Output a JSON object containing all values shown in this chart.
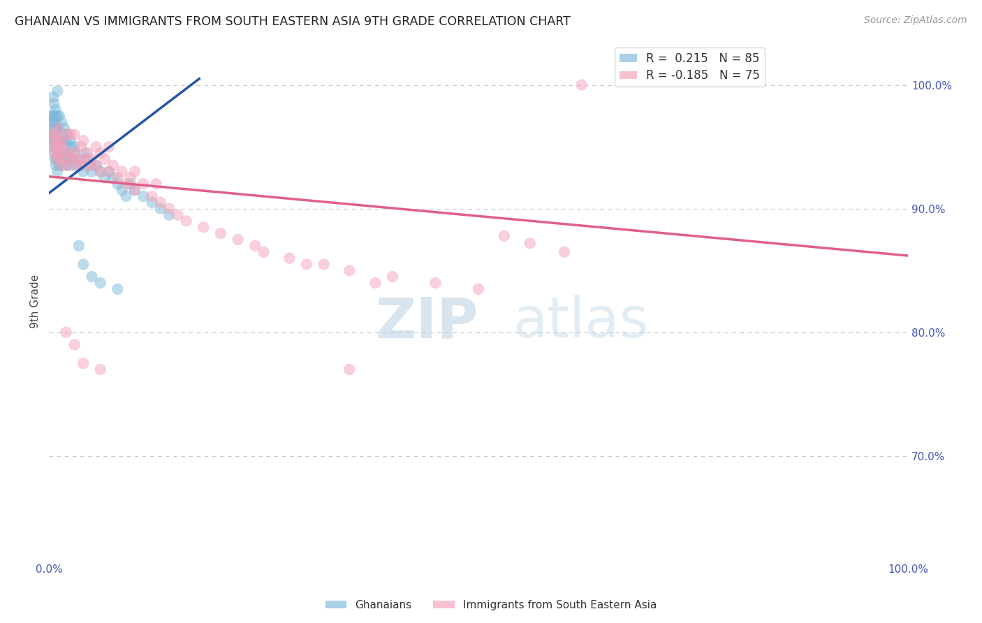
{
  "title": "GHANAIAN VS IMMIGRANTS FROM SOUTH EASTERN ASIA 9TH GRADE CORRELATION CHART",
  "source_text": "Source: ZipAtlas.com",
  "ylabel": "9th Grade",
  "xmin": 0.0,
  "xmax": 1.0,
  "ymin": 0.615,
  "ymax": 1.035,
  "ytick_labels": [
    "70.0%",
    "80.0%",
    "90.0%",
    "100.0%"
  ],
  "ytick_values": [
    0.7,
    0.8,
    0.9,
    1.0
  ],
  "xtick_labels": [
    "0.0%",
    "100.0%"
  ],
  "xtick_values": [
    0.0,
    1.0
  ],
  "r_blue": 0.215,
  "n_blue": 85,
  "r_pink": -0.185,
  "n_pink": 75,
  "blue_color": "#7ab8d9",
  "pink_color": "#f4a0b8",
  "blue_line_color": "#2255aa",
  "pink_line_color": "#e0608a",
  "background_color": "#ffffff",
  "grid_color": "#c8c8c8",
  "blue_line_x": [
    0.0,
    0.175
  ],
  "blue_line_y": [
    0.9125,
    1.005
  ],
  "pink_line_x": [
    0.0,
    1.0
  ],
  "pink_line_y": [
    0.926,
    0.862
  ],
  "blue_scatter_x": [
    0.003,
    0.003,
    0.004,
    0.004,
    0.005,
    0.005,
    0.005,
    0.006,
    0.006,
    0.006,
    0.007,
    0.007,
    0.007,
    0.007,
    0.008,
    0.008,
    0.008,
    0.008,
    0.009,
    0.009,
    0.009,
    0.01,
    0.01,
    0.01,
    0.01,
    0.01,
    0.011,
    0.011,
    0.012,
    0.012,
    0.013,
    0.013,
    0.014,
    0.015,
    0.015,
    0.016,
    0.016,
    0.017,
    0.018,
    0.019,
    0.02,
    0.02,
    0.022,
    0.023,
    0.025,
    0.026,
    0.028,
    0.03,
    0.032,
    0.035,
    0.038,
    0.04,
    0.042,
    0.045,
    0.048,
    0.05,
    0.055,
    0.06,
    0.065,
    0.07,
    0.075,
    0.08,
    0.085,
    0.09,
    0.095,
    0.1,
    0.11,
    0.12,
    0.13,
    0.14,
    0.005,
    0.006,
    0.008,
    0.01,
    0.012,
    0.015,
    0.018,
    0.022,
    0.025,
    0.03,
    0.035,
    0.04,
    0.05,
    0.06,
    0.08
  ],
  "blue_scatter_y": [
    0.96,
    0.975,
    0.955,
    0.97,
    0.95,
    0.965,
    0.975,
    0.945,
    0.96,
    0.97,
    0.94,
    0.955,
    0.965,
    0.975,
    0.935,
    0.95,
    0.96,
    0.97,
    0.94,
    0.955,
    0.965,
    0.93,
    0.945,
    0.955,
    0.965,
    0.975,
    0.94,
    0.95,
    0.935,
    0.955,
    0.94,
    0.955,
    0.945,
    0.935,
    0.955,
    0.94,
    0.96,
    0.945,
    0.94,
    0.95,
    0.935,
    0.955,
    0.945,
    0.94,
    0.935,
    0.95,
    0.94,
    0.945,
    0.935,
    0.94,
    0.935,
    0.93,
    0.945,
    0.94,
    0.935,
    0.93,
    0.935,
    0.93,
    0.925,
    0.93,
    0.925,
    0.92,
    0.915,
    0.91,
    0.92,
    0.915,
    0.91,
    0.905,
    0.9,
    0.895,
    0.99,
    0.985,
    0.98,
    0.995,
    0.975,
    0.97,
    0.965,
    0.96,
    0.955,
    0.95,
    0.87,
    0.855,
    0.845,
    0.84,
    0.835
  ],
  "pink_scatter_x": [
    0.004,
    0.005,
    0.006,
    0.007,
    0.008,
    0.009,
    0.01,
    0.01,
    0.011,
    0.012,
    0.013,
    0.014,
    0.015,
    0.016,
    0.018,
    0.02,
    0.02,
    0.022,
    0.025,
    0.025,
    0.028,
    0.03,
    0.03,
    0.032,
    0.035,
    0.038,
    0.04,
    0.04,
    0.042,
    0.045,
    0.048,
    0.05,
    0.055,
    0.055,
    0.06,
    0.06,
    0.065,
    0.07,
    0.07,
    0.075,
    0.08,
    0.085,
    0.09,
    0.095,
    0.1,
    0.1,
    0.11,
    0.12,
    0.125,
    0.13,
    0.14,
    0.15,
    0.16,
    0.18,
    0.2,
    0.22,
    0.24,
    0.25,
    0.28,
    0.3,
    0.32,
    0.35,
    0.38,
    0.4,
    0.45,
    0.5,
    0.53,
    0.56,
    0.6,
    0.62,
    0.02,
    0.03,
    0.04,
    0.06,
    0.35
  ],
  "pink_scatter_y": [
    0.96,
    0.95,
    0.955,
    0.945,
    0.96,
    0.94,
    0.965,
    0.955,
    0.95,
    0.945,
    0.94,
    0.955,
    0.935,
    0.95,
    0.945,
    0.94,
    0.96,
    0.935,
    0.945,
    0.96,
    0.94,
    0.945,
    0.96,
    0.935,
    0.94,
    0.95,
    0.935,
    0.955,
    0.94,
    0.945,
    0.935,
    0.94,
    0.935,
    0.95,
    0.93,
    0.945,
    0.94,
    0.93,
    0.95,
    0.935,
    0.925,
    0.93,
    0.92,
    0.925,
    0.915,
    0.93,
    0.92,
    0.91,
    0.92,
    0.905,
    0.9,
    0.895,
    0.89,
    0.885,
    0.88,
    0.875,
    0.87,
    0.865,
    0.86,
    0.855,
    0.855,
    0.85,
    0.84,
    0.845,
    0.84,
    0.835,
    0.878,
    0.872,
    0.865,
    1.0,
    0.8,
    0.79,
    0.775,
    0.77,
    0.77
  ]
}
